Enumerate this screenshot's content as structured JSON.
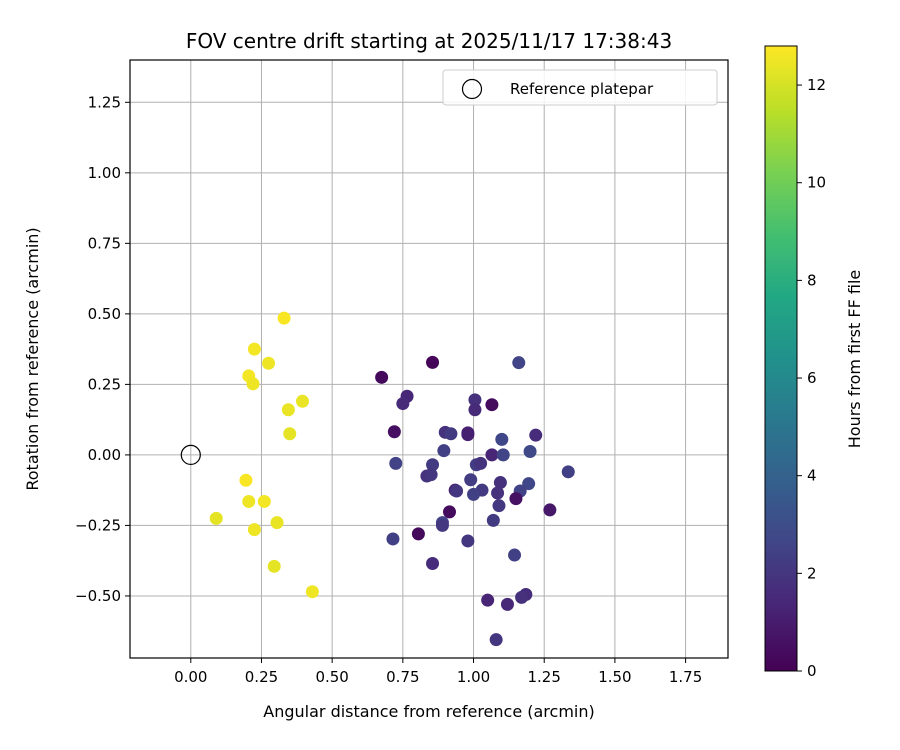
{
  "chart_data": {
    "type": "scatter",
    "title": "FOV centre drift starting at 2025/11/17 17:38:43",
    "xlabel": "Angular distance from reference (arcmin)",
    "ylabel": "Rotation from reference (arcmin)",
    "xlim": [
      -0.215,
      1.9
    ],
    "ylim": [
      -0.72,
      1.4
    ],
    "xticks": [
      0.0,
      0.25,
      0.5,
      0.75,
      1.0,
      1.25,
      1.5,
      1.75
    ],
    "xtick_labels": [
      "0.00",
      "0.25",
      "0.50",
      "0.75",
      "1.00",
      "1.25",
      "1.50",
      "1.75"
    ],
    "yticks": [
      -0.5,
      -0.25,
      0.0,
      0.25,
      0.5,
      0.75,
      1.0,
      1.25
    ],
    "ytick_labels": [
      "−0.50",
      "−0.25",
      "0.00",
      "0.25",
      "0.50",
      "0.75",
      "1.00",
      "1.25"
    ],
    "grid": true,
    "legend": {
      "position": "top-right",
      "entries": [
        "Reference platepar"
      ]
    },
    "reference_point": {
      "x": 0.0,
      "y": 0.0
    },
    "colorbar": {
      "label": "Hours from first FF file",
      "colormap": "viridis",
      "range": [
        0,
        12.8
      ],
      "ticks": [
        0,
        2,
        4,
        6,
        8,
        10,
        12
      ],
      "tick_labels": [
        "0",
        "2",
        "4",
        "6",
        "8",
        "10",
        "12"
      ]
    },
    "points": [
      {
        "x": 0.33,
        "y": 0.485,
        "h": 12.7
      },
      {
        "x": 0.225,
        "y": 0.375,
        "h": 12.6
      },
      {
        "x": 0.275,
        "y": 0.325,
        "h": 12.5
      },
      {
        "x": 0.205,
        "y": 0.28,
        "h": 12.6
      },
      {
        "x": 0.22,
        "y": 0.252,
        "h": 12.5
      },
      {
        "x": 0.395,
        "y": 0.19,
        "h": 12.4
      },
      {
        "x": 0.345,
        "y": 0.16,
        "h": 12.4
      },
      {
        "x": 0.35,
        "y": 0.075,
        "h": 12.3
      },
      {
        "x": 0.195,
        "y": -0.09,
        "h": 12.7
      },
      {
        "x": 0.205,
        "y": -0.165,
        "h": 12.5
      },
      {
        "x": 0.26,
        "y": -0.165,
        "h": 12.6
      },
      {
        "x": 0.09,
        "y": -0.225,
        "h": 12.3
      },
      {
        "x": 0.305,
        "y": -0.24,
        "h": 12.4
      },
      {
        "x": 0.225,
        "y": -0.265,
        "h": 12.5
      },
      {
        "x": 0.295,
        "y": -0.395,
        "h": 12.3
      },
      {
        "x": 0.43,
        "y": -0.485,
        "h": 12.5
      },
      {
        "x": 0.855,
        "y": 0.328,
        "h": 0.2
      },
      {
        "x": 1.16,
        "y": 0.327,
        "h": 2.6
      },
      {
        "x": 0.675,
        "y": 0.275,
        "h": 0.3
      },
      {
        "x": 0.765,
        "y": 0.208,
        "h": 1.4
      },
      {
        "x": 0.75,
        "y": 0.182,
        "h": 1.5
      },
      {
        "x": 1.005,
        "y": 0.195,
        "h": 1.8
      },
      {
        "x": 1.005,
        "y": 0.16,
        "h": 1.5
      },
      {
        "x": 1.065,
        "y": 0.178,
        "h": 0.4
      },
      {
        "x": 0.72,
        "y": 0.082,
        "h": 0.5
      },
      {
        "x": 0.9,
        "y": 0.08,
        "h": 1.8
      },
      {
        "x": 0.92,
        "y": 0.075,
        "h": 2.2
      },
      {
        "x": 0.98,
        "y": 0.078,
        "h": 1.2
      },
      {
        "x": 0.98,
        "y": 0.072,
        "h": 1.1
      },
      {
        "x": 1.22,
        "y": 0.07,
        "h": 1.6
      },
      {
        "x": 1.1,
        "y": 0.055,
        "h": 2.7
      },
      {
        "x": 0.895,
        "y": 0.015,
        "h": 2.4
      },
      {
        "x": 1.2,
        "y": 0.012,
        "h": 2.8
      },
      {
        "x": 1.065,
        "y": 0.0,
        "h": 1.3
      },
      {
        "x": 1.105,
        "y": 0.0,
        "h": 2.6
      },
      {
        "x": 0.725,
        "y": -0.03,
        "h": 2.5
      },
      {
        "x": 0.855,
        "y": -0.035,
        "h": 2.2
      },
      {
        "x": 1.01,
        "y": -0.035,
        "h": 2.3
      },
      {
        "x": 1.025,
        "y": -0.03,
        "h": 1.9
      },
      {
        "x": 0.835,
        "y": -0.075,
        "h": 1.9
      },
      {
        "x": 0.85,
        "y": -0.07,
        "h": 2.0
      },
      {
        "x": 1.335,
        "y": -0.06,
        "h": 2.4
      },
      {
        "x": 0.99,
        "y": -0.088,
        "h": 2.3
      },
      {
        "x": 1.095,
        "y": -0.098,
        "h": 1.8
      },
      {
        "x": 1.195,
        "y": -0.102,
        "h": 2.7
      },
      {
        "x": 0.935,
        "y": -0.125,
        "h": 1.2
      },
      {
        "x": 0.94,
        "y": -0.128,
        "h": 2.0
      },
      {
        "x": 1.03,
        "y": -0.125,
        "h": 2.2
      },
      {
        "x": 1.165,
        "y": -0.128,
        "h": 2.5
      },
      {
        "x": 1.085,
        "y": -0.135,
        "h": 1.8
      },
      {
        "x": 1.0,
        "y": -0.14,
        "h": 2.4
      },
      {
        "x": 1.15,
        "y": -0.155,
        "h": 0.6
      },
      {
        "x": 1.09,
        "y": -0.18,
        "h": 2.1
      },
      {
        "x": 1.27,
        "y": -0.195,
        "h": 0.8
      },
      {
        "x": 0.915,
        "y": -0.202,
        "h": 0.4
      },
      {
        "x": 1.07,
        "y": -0.232,
        "h": 2.2
      },
      {
        "x": 0.89,
        "y": -0.24,
        "h": 2.5
      },
      {
        "x": 0.89,
        "y": -0.25,
        "h": 2.1
      },
      {
        "x": 0.805,
        "y": -0.28,
        "h": 0.3
      },
      {
        "x": 0.715,
        "y": -0.298,
        "h": 2.4
      },
      {
        "x": 0.98,
        "y": -0.305,
        "h": 2.0
      },
      {
        "x": 1.145,
        "y": -0.355,
        "h": 2.4
      },
      {
        "x": 0.855,
        "y": -0.385,
        "h": 1.6
      },
      {
        "x": 1.185,
        "y": -0.495,
        "h": 1.6
      },
      {
        "x": 1.17,
        "y": -0.505,
        "h": 1.8
      },
      {
        "x": 1.05,
        "y": -0.515,
        "h": 1.3
      },
      {
        "x": 1.12,
        "y": -0.53,
        "h": 1.4
      },
      {
        "x": 1.08,
        "y": -0.655,
        "h": 2.0
      }
    ]
  }
}
